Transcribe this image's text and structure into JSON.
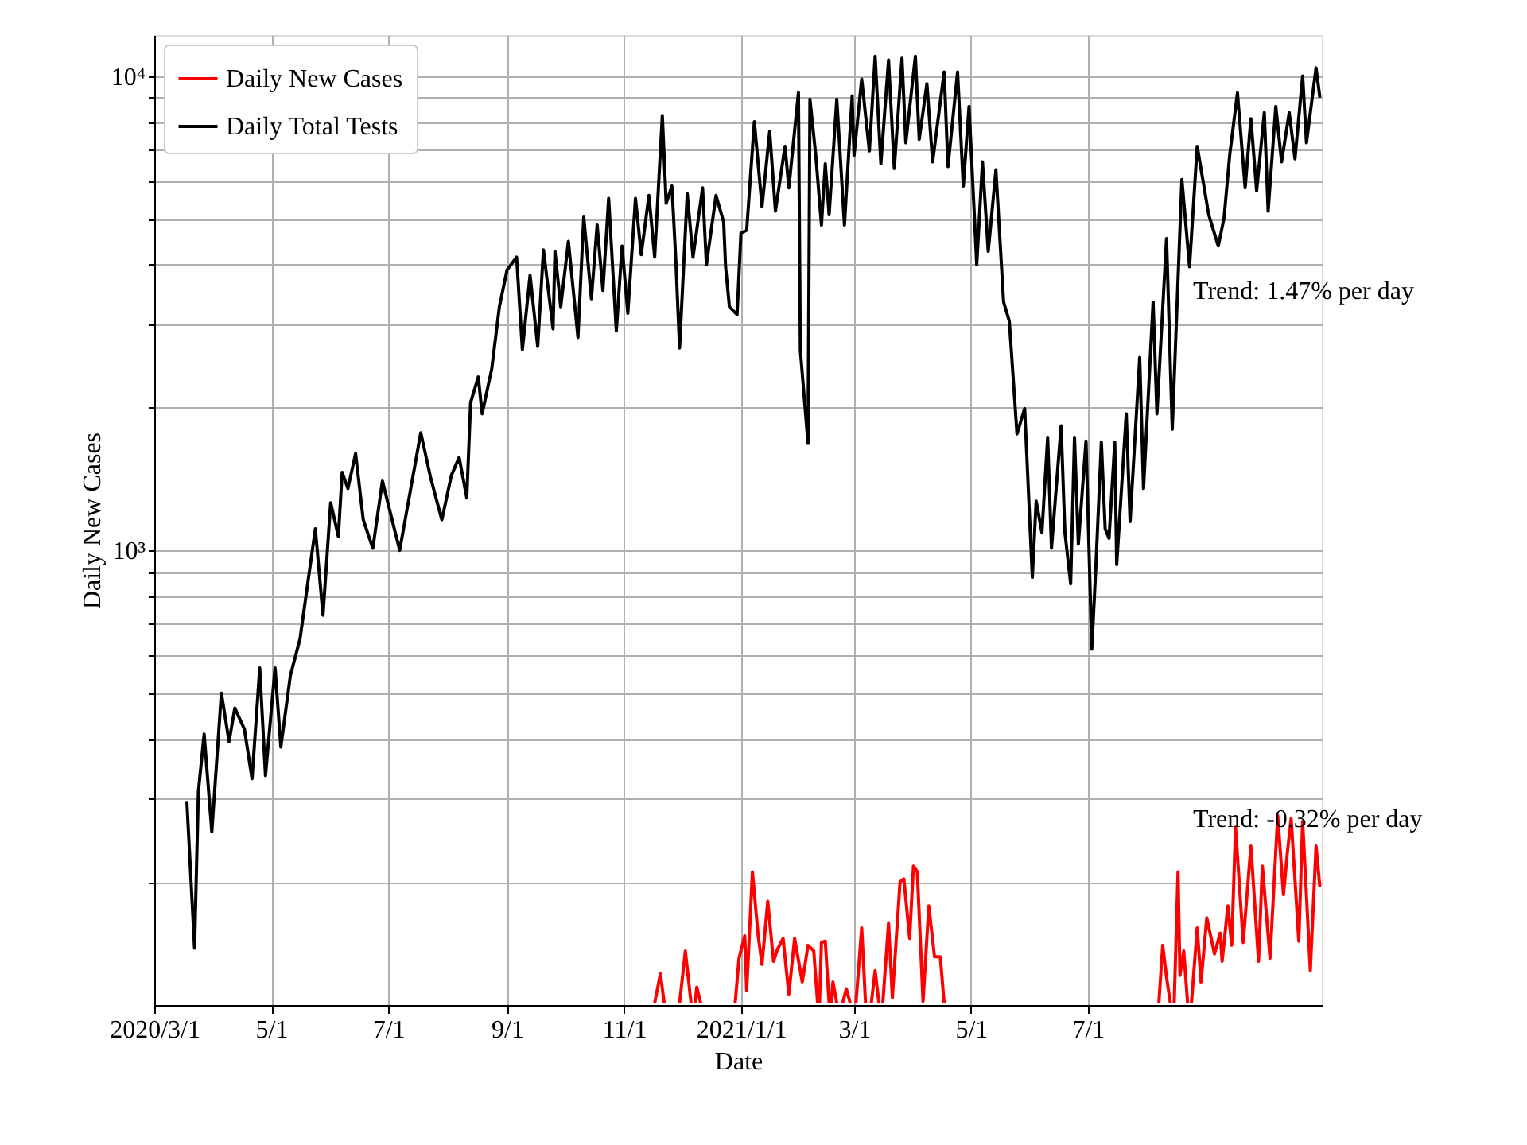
{
  "chart_data": {
    "type": "line",
    "xlabel": "Date",
    "ylabel": "Daily New Cases",
    "xlim": [
      "2020-03-01",
      "2021-10-31"
    ],
    "xticks": [
      {
        "value": "2020-03-01",
        "label": "2020/3/1"
      },
      {
        "value": "2020-05-01",
        "label": "5/1"
      },
      {
        "value": "2020-07-01",
        "label": "7/1"
      },
      {
        "value": "2020-09-01",
        "label": "9/1"
      },
      {
        "value": "2020-11-01",
        "label": "11/1"
      },
      {
        "value": "2021-01-01",
        "label": "2021/1/1"
      },
      {
        "value": "2021-03-01",
        "label": "3/1"
      },
      {
        "value": "2021-05-01",
        "label": "5/1"
      },
      {
        "value": "2021-07-01",
        "label": "7/1"
      }
    ],
    "ylim": [
      110,
      12200
    ],
    "yticks": [
      {
        "value": 200,
        "label": null
      },
      {
        "value": 300,
        "label": null
      },
      {
        "value": 400,
        "label": null
      },
      {
        "value": 500,
        "label": null
      },
      {
        "value": 600,
        "label": null
      },
      {
        "value": 700,
        "label": null
      },
      {
        "value": 800,
        "label": null
      },
      {
        "value": 900,
        "label": null
      },
      {
        "value": 1000,
        "label": "10³"
      },
      {
        "value": 2000,
        "label": null
      },
      {
        "value": 3000,
        "label": null
      },
      {
        "value": 4000,
        "label": null
      },
      {
        "value": 5000,
        "label": null
      },
      {
        "value": 6000,
        "label": null
      },
      {
        "value": 7000,
        "label": null
      },
      {
        "value": 8000,
        "label": null
      },
      {
        "value": 9000,
        "label": null
      },
      {
        "value": 10000,
        "label": "10⁴"
      }
    ],
    "log": "y",
    "grid": true,
    "legend": "top left",
    "line_style": "solid",
    "annotations": [
      "Trend: 1.47% per day",
      "Trend: -0.32% per day"
    ],
    "series": [
      {
        "name": "Daily New Cases",
        "color": "#ff0000",
        "x": [
          "2020-11-17",
          "2020-11-20",
          "2020-11-22",
          "2020-11-23",
          "2020-11-30",
          "2020-12-03",
          "2020-12-06",
          "2020-12-07",
          "2020-12-08",
          "2020-12-09",
          "2020-12-11",
          "2020-12-12",
          "2020-12-29",
          "2020-12-31",
          "2021-01-03",
          "2021-01-04",
          "2021-01-07",
          "2021-01-10",
          "2021-01-12",
          "2021-01-15",
          "2021-01-18",
          "2021-01-20",
          "2021-01-23",
          "2021-01-26",
          "2021-01-29",
          "2021-02-02",
          "2021-02-05",
          "2021-02-08",
          "2021-02-10",
          "2021-02-10T12:00",
          "2021-02-11",
          "2021-02-12",
          "2021-02-14",
          "2021-02-16",
          "2021-02-16T12:00",
          "2021-02-17",
          "2021-02-18",
          "2021-02-20",
          "2021-02-21",
          "2021-02-23",
          "2021-02-25",
          "2021-02-27",
          "2021-02-28",
          "2021-03-02",
          "2021-03-05",
          "2021-03-07",
          "2021-03-08",
          "2021-03-10",
          "2021-03-12",
          "2021-03-14",
          "2021-03-15",
          "2021-03-16",
          "2021-03-19",
          "2021-03-21",
          "2021-03-25",
          "2021-03-27",
          "2021-03-30",
          "2021-04-01",
          "2021-04-03",
          "2021-04-06",
          "2021-04-09",
          "2021-04-12",
          "2021-04-15",
          "2021-04-17",
          "2021-04-18",
          "2021-08-07",
          "2021-08-09",
          "2021-08-11",
          "2021-08-13",
          "2021-08-14",
          "2021-08-15",
          "2021-08-17",
          "2021-08-18",
          "2021-08-20",
          "2021-08-22",
          "2021-08-23",
          "2021-08-24",
          "2021-08-27",
          "2021-08-29",
          "2021-09-01",
          "2021-09-05",
          "2021-09-08",
          "2021-09-09",
          "2021-09-12",
          "2021-09-14",
          "2021-09-16",
          "2021-09-20",
          "2021-09-24",
          "2021-09-28",
          "2021-09-30",
          "2021-10-04",
          "2021-10-08",
          "2021-10-11",
          "2021-10-13",
          "2021-10-15",
          "2021-10-19",
          "2021-10-21",
          "2021-10-25",
          "2021-10-28",
          "2021-10-30"
        ],
        "values": [
          111,
          128,
          111,
          null,
          111,
          143,
          111,
          null,
          111,
          120,
          111,
          null,
          111,
          138,
          154,
          118,
          210,
          154,
          134,
          182,
          136,
          144,
          152,
          116,
          152,
          123,
          147,
          143,
          111,
          null,
          111,
          149,
          150,
          111,
          null,
          111,
          123,
          111,
          null,
          111,
          119,
          111,
          null,
          111,
          160,
          111,
          null,
          111,
          130,
          111,
          null,
          111,
          164,
          114,
          200,
          203,
          152,
          216,
          210,
          112,
          178,
          139,
          139,
          111,
          null,
          111,
          147,
          126,
          111,
          null,
          111,
          210,
          127,
          143,
          111,
          null,
          111,
          160,
          123,
          168,
          141,
          156,
          136,
          178,
          147,
          261,
          149,
          238,
          136,
          216,
          138,
          276,
          188,
          230,
          272,
          150,
          268,
          130,
          238,
          195
        ]
      },
      {
        "name": "Daily Total Tests",
        "color": "#000000",
        "x": [
          "2020-03-18",
          "2020-03-22",
          "2020-03-24",
          "2020-03-27",
          "2020-03-31",
          "2020-04-05",
          "2020-04-09",
          "2020-04-12",
          "2020-04-17",
          "2020-04-21",
          "2020-04-25",
          "2020-04-28",
          "2020-05-03",
          "2020-05-06",
          "2020-05-11",
          "2020-05-16",
          "2020-05-24",
          "2020-05-28",
          "2020-06-01",
          "2020-06-05",
          "2020-06-07",
          "2020-06-10",
          "2020-06-14",
          "2020-06-18",
          "2020-06-23",
          "2020-06-28",
          "2020-07-07",
          "2020-07-18",
          "2020-07-23",
          "2020-07-29",
          "2020-08-03",
          "2020-08-07",
          "2020-08-11",
          "2020-08-13",
          "2020-08-17",
          "2020-08-19",
          "2020-08-24",
          "2020-08-28",
          "2020-09-01",
          "2020-09-06",
          "2020-09-09",
          "2020-09-13",
          "2020-09-17",
          "2020-09-20",
          "2020-09-25",
          "2020-09-26",
          "2020-09-29",
          "2020-10-03",
          "2020-10-08",
          "2020-10-11",
          "2020-10-15",
          "2020-10-18",
          "2020-10-21",
          "2020-10-24",
          "2020-10-28",
          "2020-10-31",
          "2020-11-03",
          "2020-11-07",
          "2020-11-10",
          "2020-11-14",
          "2020-11-17",
          "2020-11-21",
          "2020-11-23",
          "2020-11-26",
          "2020-11-28",
          "2020-11-30",
          "2020-12-04",
          "2020-12-07",
          "2020-12-12",
          "2020-12-14",
          "2020-12-19",
          "2020-12-23",
          "2020-12-24",
          "2020-12-26",
          "2020-12-30",
          "2021-01-01",
          "2021-01-04",
          "2021-01-08",
          "2021-01-12",
          "2021-01-16",
          "2021-01-19",
          "2021-01-24",
          "2021-01-26",
          "2021-01-31",
          "2021-02-01",
          "2021-02-05",
          "2021-02-06",
          "2021-02-09",
          "2021-02-12",
          "2021-02-14",
          "2021-02-16",
          "2021-02-20",
          "2021-02-24",
          "2021-02-28",
          "2021-03-01",
          "2021-03-05",
          "2021-03-09",
          "2021-03-12",
          "2021-03-15",
          "2021-03-19",
          "2021-03-22",
          "2021-03-26",
          "2021-03-28",
          "2021-04-02",
          "2021-04-04",
          "2021-04-08",
          "2021-04-11",
          "2021-04-17",
          "2021-04-19",
          "2021-04-24",
          "2021-04-27",
          "2021-04-30",
          "2021-05-04",
          "2021-05-07",
          "2021-05-10",
          "2021-05-14",
          "2021-05-18",
          "2021-05-21",
          "2021-05-25",
          "2021-05-29",
          "2021-06-02",
          "2021-06-04",
          "2021-06-07",
          "2021-06-10",
          "2021-06-12",
          "2021-06-17",
          "2021-06-19",
          "2021-06-22",
          "2021-06-24",
          "2021-06-26",
          "2021-06-30",
          "2021-07-03",
          "2021-07-05",
          "2021-07-08",
          "2021-07-10",
          "2021-07-12",
          "2021-07-15",
          "2021-07-16",
          "2021-07-21",
          "2021-07-23",
          "2021-07-28",
          "2021-07-30",
          "2021-08-04",
          "2021-08-06",
          "2021-08-11",
          "2021-08-14",
          "2021-08-19",
          "2021-08-23",
          "2021-08-27",
          "2021-09-02",
          "2021-09-07",
          "2021-09-10",
          "2021-09-13",
          "2021-09-17",
          "2021-09-21",
          "2021-09-24",
          "2021-09-27",
          "2021-10-01",
          "2021-10-03",
          "2021-10-07",
          "2021-10-10",
          "2021-10-14",
          "2021-10-17",
          "2021-10-21",
          "2021-10-23",
          "2021-10-28",
          "2021-10-30"
        ],
        "values": [
          295,
          145,
          310,
          410,
          255,
          500,
          395,
          465,
          420,
          330,
          565,
          335,
          565,
          385,
          545,
          650,
          1110,
          730,
          1260,
          1070,
          1460,
          1350,
          1600,
          1160,
          1010,
          1400,
          1000,
          1770,
          1430,
          1160,
          1440,
          1570,
          1290,
          2050,
          2320,
          1940,
          2410,
          3260,
          3900,
          4150,
          2650,
          3800,
          2690,
          4300,
          2930,
          4270,
          3260,
          4480,
          2810,
          5040,
          3390,
          4850,
          3530,
          5520,
          2900,
          4380,
          3160,
          5520,
          4200,
          5600,
          4150,
          8250,
          5390,
          5860,
          4120,
          2670,
          5650,
          4150,
          5810,
          4000,
          5600,
          4920,
          3960,
          3260,
          3140,
          4660,
          4730,
          8010,
          5300,
          7640,
          5190,
          7110,
          5810,
          9220,
          2640,
          1680,
          8930,
          6840,
          4850,
          6530,
          5100,
          8930,
          4850,
          9080,
          6790,
          9850,
          6950,
          11000,
          6530,
          10800,
          6380,
          10900,
          7230,
          11000,
          7350,
          9630,
          6590,
          10200,
          6440,
          10200,
          5860,
          8630,
          4000,
          6590,
          4270,
          6340,
          3340,
          3040,
          1760,
          1990,
          877,
          1270,
          1090,
          1730,
          1010,
          1830,
          1090,
          850,
          1730,
          1030,
          1700,
          619,
          897,
          1690,
          1110,
          1060,
          1690,
          933,
          1940,
          1150,
          2550,
          1350,
          3340,
          1940,
          4540,
          1800,
          6050,
          3960,
          7110,
          5100,
          4380,
          5020,
          6840,
          9220,
          5810,
          8130,
          5730,
          8370,
          5190,
          8630,
          6590,
          8370,
          6690,
          10000,
          7230,
          10400,
          9000
        ]
      }
    ]
  }
}
